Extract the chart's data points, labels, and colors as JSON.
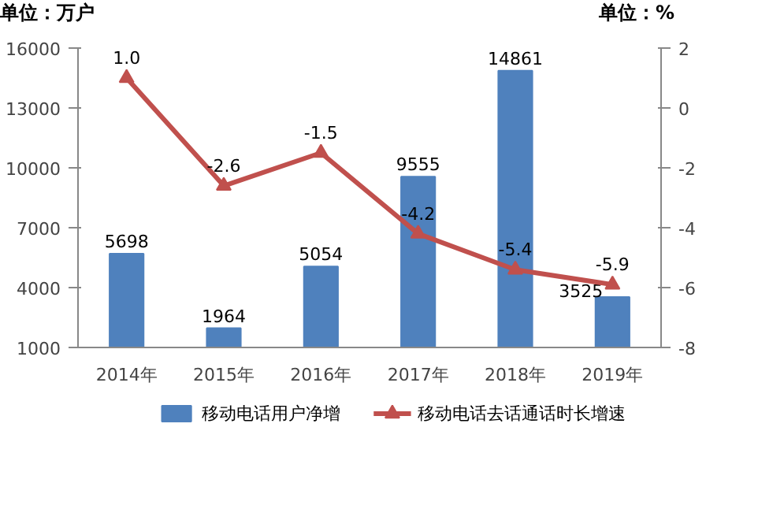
{
  "chart_data": {
    "type": "bar",
    "ylabel": "单位：万户",
    "y2label": "单位：%",
    "categories": [
      "2014年",
      "2015年",
      "2016年",
      "2017年",
      "2018年",
      "2019年"
    ],
    "series": [
      {
        "name": "移动电话用户净增",
        "color": "#4f81bd",
        "values": [
          5698,
          1964,
          5054,
          9555,
          14861,
          3525
        ]
      },
      {
        "name": "移动电话去话通话时长增速",
        "type": "line",
        "axis": "y2",
        "color": "#c0504d",
        "values": [
          1.0,
          -2.6,
          -1.5,
          -4.2,
          -5.4,
          -5.9
        ],
        "value_labels": [
          "1.0",
          "-2.6",
          "-1.5",
          "-4.2",
          "-5.4",
          "-5.9"
        ]
      }
    ],
    "ylim": [
      1000,
      16000
    ],
    "yticks": [
      1000,
      4000,
      7000,
      10000,
      13000,
      16000
    ],
    "y2lim": [
      -8,
      2
    ],
    "y2ticks": [
      -8,
      -6,
      -4,
      -2,
      0,
      2
    ],
    "data_labels": true,
    "legend": "bottom",
    "grid": false,
    "marker": "triangle",
    "line_style": "solid"
  }
}
